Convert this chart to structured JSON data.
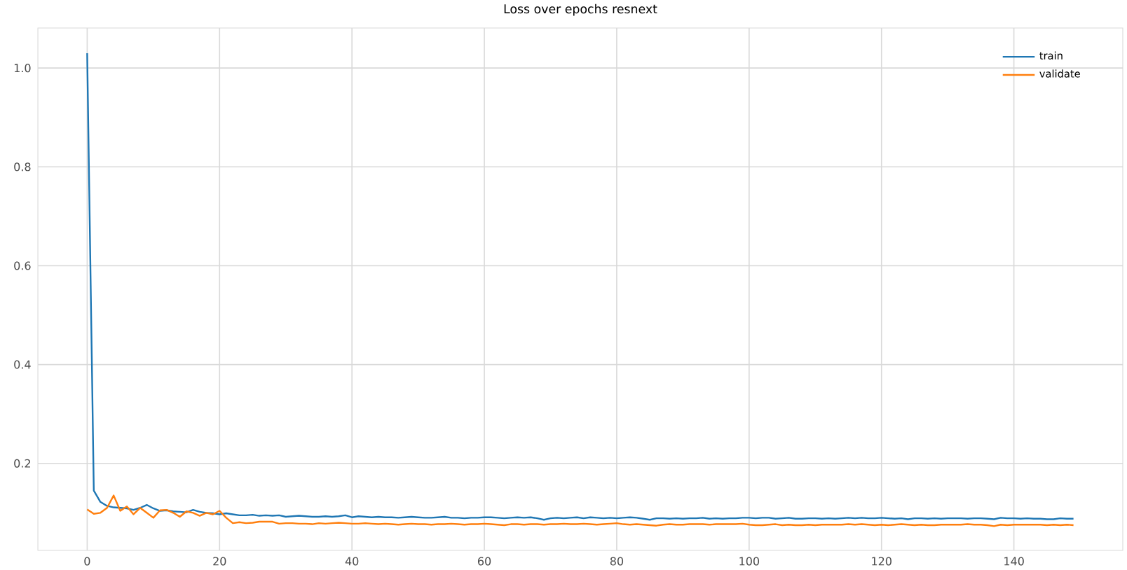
{
  "chart_data": {
    "type": "line",
    "title": "Loss over epochs resnext",
    "x": [
      0,
      1,
      2,
      3,
      4,
      5,
      6,
      7,
      8,
      9,
      10,
      11,
      12,
      13,
      14,
      15,
      16,
      17,
      18,
      19,
      20,
      21,
      22,
      23,
      24,
      25,
      26,
      27,
      28,
      29,
      30,
      31,
      32,
      33,
      34,
      35,
      36,
      37,
      38,
      39,
      40,
      41,
      42,
      43,
      44,
      45,
      46,
      47,
      48,
      49,
      50,
      51,
      52,
      53,
      54,
      55,
      56,
      57,
      58,
      59,
      60,
      61,
      62,
      63,
      64,
      65,
      66,
      67,
      68,
      69,
      70,
      71,
      72,
      73,
      74,
      75,
      76,
      77,
      78,
      79,
      80,
      81,
      82,
      83,
      84,
      85,
      86,
      87,
      88,
      89,
      90,
      91,
      92,
      93,
      94,
      95,
      96,
      97,
      98,
      99,
      100,
      101,
      102,
      103,
      104,
      105,
      106,
      107,
      108,
      109,
      110,
      111,
      112,
      113,
      114,
      115,
      116,
      117,
      118,
      119,
      120,
      121,
      122,
      123,
      124,
      125,
      126,
      127,
      128,
      129,
      130,
      131,
      132,
      133,
      134,
      135,
      136,
      137,
      138,
      139,
      140,
      141,
      142,
      143,
      144,
      145,
      146,
      147,
      148,
      149
    ],
    "series": [
      {
        "name": "train",
        "color": "#1f77b4",
        "values": [
          1.03,
          0.145,
          0.122,
          0.114,
          0.111,
          0.11,
          0.109,
          0.106,
          0.11,
          0.116,
          0.109,
          0.104,
          0.105,
          0.103,
          0.102,
          0.101,
          0.106,
          0.102,
          0.1,
          0.099,
          0.097,
          0.099,
          0.097,
          0.095,
          0.095,
          0.096,
          0.094,
          0.095,
          0.094,
          0.095,
          0.092,
          0.093,
          0.094,
          0.093,
          0.092,
          0.092,
          0.093,
          0.092,
          0.093,
          0.095,
          0.091,
          0.093,
          0.092,
          0.091,
          0.092,
          0.091,
          0.091,
          0.09,
          0.091,
          0.092,
          0.091,
          0.09,
          0.09,
          0.091,
          0.092,
          0.09,
          0.09,
          0.089,
          0.09,
          0.09,
          0.091,
          0.091,
          0.09,
          0.089,
          0.09,
          0.091,
          0.09,
          0.091,
          0.089,
          0.086,
          0.089,
          0.09,
          0.089,
          0.09,
          0.091,
          0.089,
          0.091,
          0.09,
          0.089,
          0.09,
          0.089,
          0.09,
          0.091,
          0.09,
          0.088,
          0.086,
          0.089,
          0.089,
          0.088,
          0.089,
          0.088,
          0.089,
          0.089,
          0.09,
          0.088,
          0.089,
          0.088,
          0.089,
          0.089,
          0.09,
          0.09,
          0.089,
          0.09,
          0.09,
          0.088,
          0.089,
          0.09,
          0.088,
          0.088,
          0.089,
          0.089,
          0.088,
          0.089,
          0.088,
          0.089,
          0.09,
          0.089,
          0.09,
          0.089,
          0.089,
          0.09,
          0.089,
          0.088,
          0.089,
          0.087,
          0.089,
          0.089,
          0.088,
          0.089,
          0.088,
          0.089,
          0.089,
          0.089,
          0.088,
          0.089,
          0.089,
          0.088,
          0.087,
          0.09,
          0.089,
          0.089,
          0.088,
          0.089,
          0.088,
          0.088,
          0.087,
          0.087,
          0.089,
          0.088,
          0.088
        ]
      },
      {
        "name": "validate",
        "color": "#ff7f0e",
        "values": [
          0.107,
          0.098,
          0.1,
          0.11,
          0.135,
          0.104,
          0.113,
          0.097,
          0.11,
          0.1,
          0.09,
          0.105,
          0.106,
          0.1,
          0.092,
          0.103,
          0.1,
          0.094,
          0.1,
          0.097,
          0.104,
          0.09,
          0.079,
          0.081,
          0.079,
          0.08,
          0.082,
          0.082,
          0.082,
          0.078,
          0.079,
          0.079,
          0.078,
          0.078,
          0.077,
          0.079,
          0.078,
          0.079,
          0.08,
          0.079,
          0.078,
          0.078,
          0.079,
          0.078,
          0.077,
          0.078,
          0.077,
          0.076,
          0.077,
          0.078,
          0.077,
          0.077,
          0.076,
          0.077,
          0.077,
          0.078,
          0.077,
          0.076,
          0.077,
          0.077,
          0.078,
          0.077,
          0.076,
          0.075,
          0.077,
          0.077,
          0.076,
          0.077,
          0.077,
          0.076,
          0.077,
          0.077,
          0.078,
          0.077,
          0.077,
          0.078,
          0.077,
          0.076,
          0.077,
          0.078,
          0.079,
          0.077,
          0.076,
          0.077,
          0.076,
          0.075,
          0.074,
          0.076,
          0.077,
          0.076,
          0.076,
          0.077,
          0.077,
          0.077,
          0.076,
          0.077,
          0.077,
          0.077,
          0.077,
          0.078,
          0.076,
          0.075,
          0.075,
          0.076,
          0.077,
          0.075,
          0.076,
          0.075,
          0.075,
          0.076,
          0.075,
          0.076,
          0.076,
          0.076,
          0.076,
          0.077,
          0.076,
          0.077,
          0.076,
          0.075,
          0.076,
          0.075,
          0.076,
          0.077,
          0.076,
          0.075,
          0.076,
          0.075,
          0.075,
          0.076,
          0.076,
          0.076,
          0.076,
          0.077,
          0.076,
          0.076,
          0.075,
          0.073,
          0.076,
          0.075,
          0.076,
          0.076,
          0.076,
          0.076,
          0.076,
          0.075,
          0.076,
          0.075,
          0.076,
          0.075
        ]
      }
    ],
    "xlim": [
      -7.45,
      156.45
    ],
    "ylim": [
      0.024,
      1.081
    ],
    "xticks": [
      0,
      20,
      40,
      60,
      80,
      100,
      120,
      140
    ],
    "yticks": [
      0.2,
      0.4,
      0.6,
      0.8,
      {
        "value": 1,
        "label": "1.0"
      }
    ],
    "grid": true,
    "legend": "top right",
    "line_style": "solid",
    "marker": "none"
  }
}
